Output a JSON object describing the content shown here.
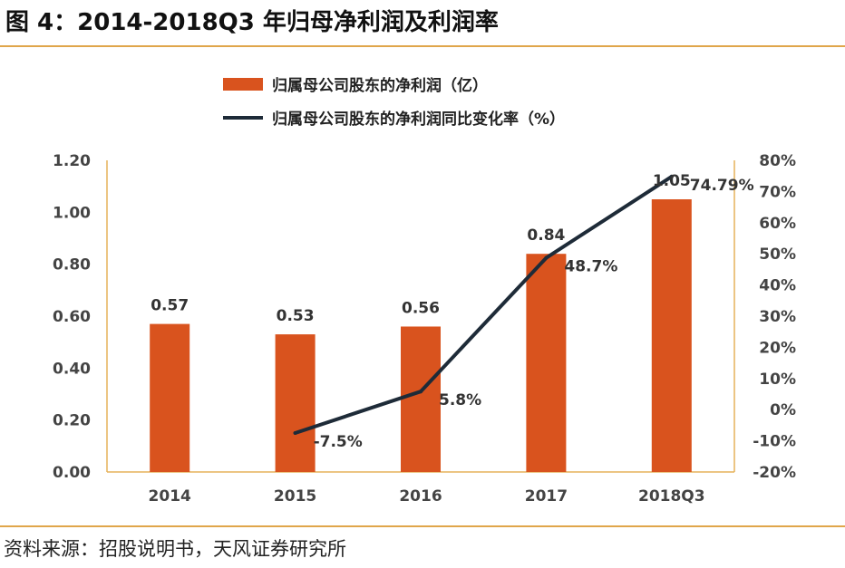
{
  "title": "图 4：2014-2018Q3 年归母净利润及利润率",
  "source": "资料来源：招股说明书，天风证券研究所",
  "colors": {
    "bar": "#d9531e",
    "line": "#1e2b38",
    "axis": "#e6b25a"
  },
  "chart_data": {
    "type": "bar+line",
    "categories": [
      "2014",
      "2015",
      "2016",
      "2017",
      "2018Q3"
    ],
    "series": [
      {
        "name": "归属母公司股东的净利润（亿）",
        "type": "bar",
        "axis": "left",
        "values": [
          0.57,
          0.53,
          0.56,
          0.84,
          1.05
        ],
        "labels": [
          "0.57",
          "0.53",
          "0.56",
          "0.84",
          "1.05"
        ]
      },
      {
        "name": "归属母公司股东的净利润同比变化率（%）",
        "type": "line",
        "axis": "right",
        "values": [
          null,
          -7.5,
          5.8,
          48.7,
          74.79
        ],
        "labels": [
          "",
          "-7.5%",
          "5.8%",
          "48.7%",
          "74.79%"
        ]
      }
    ],
    "left_axis": {
      "ylim": [
        0,
        1.2
      ],
      "ticks": [
        "0.00",
        "0.20",
        "0.40",
        "0.60",
        "0.80",
        "1.00",
        "1.20"
      ]
    },
    "right_axis": {
      "ylim": [
        -20,
        80
      ],
      "ticks": [
        "-20%",
        "-10%",
        "0%",
        "10%",
        "20%",
        "30%",
        "40%",
        "50%",
        "60%",
        "70%",
        "80%"
      ]
    },
    "legend": [
      "归属母公司股东的净利润（亿）",
      "归属母公司股东的净利润同比变化率（%）"
    ],
    "legend_position": "top"
  }
}
